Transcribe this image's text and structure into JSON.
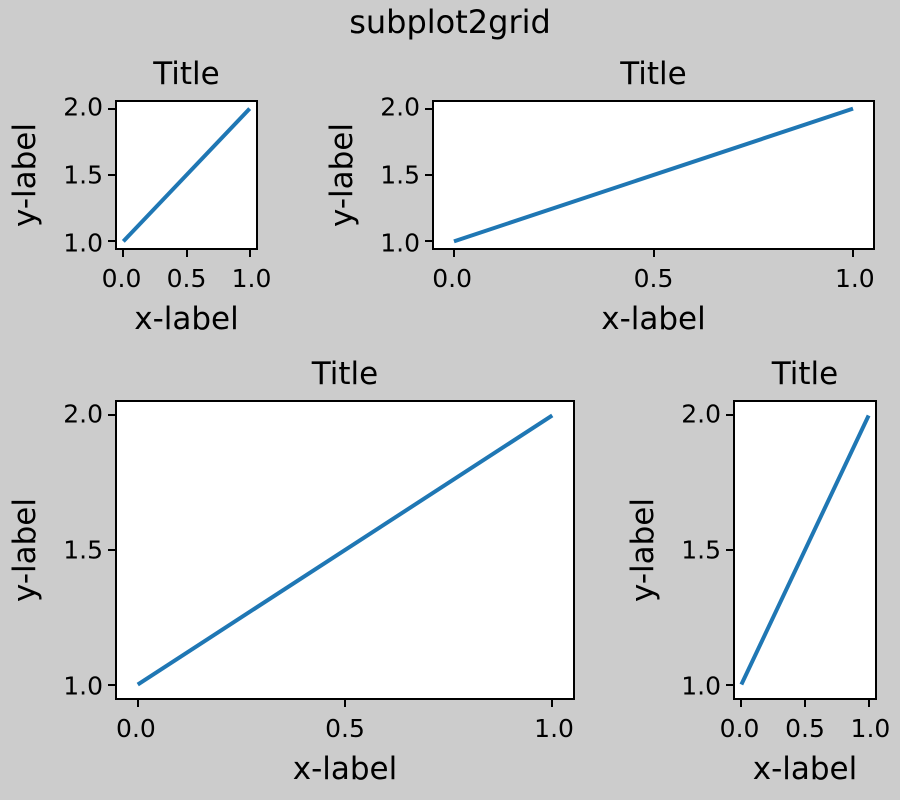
{
  "figure": {
    "suptitle": "subplot2grid",
    "facecolor": "#cccccc",
    "axes_facecolor": "#ffffff",
    "spine_color": "#000000",
    "text_color": "#000000",
    "line_color": "#1f77b4"
  },
  "chart_data": [
    {
      "type": "line",
      "title": "Title",
      "xlabel": "x-label",
      "ylabel": "y-label",
      "x": [
        0,
        1
      ],
      "y": [
        1,
        2
      ],
      "xlim": [
        -0.05,
        1.05
      ],
      "ylim": [
        0.95,
        2.05
      ],
      "xticks": [
        "0.0",
        "0.5",
        "1.0"
      ],
      "yticks": [
        "1.0",
        "1.5",
        "2.0"
      ],
      "grid": false,
      "legend": false,
      "line_color": "#1f77b4",
      "subplot2grid": {
        "shape": [
          3,
          3
        ],
        "loc": [
          0,
          0
        ],
        "rowspan": 1,
        "colspan": 1
      }
    },
    {
      "type": "line",
      "title": "Title",
      "xlabel": "x-label",
      "ylabel": "y-label",
      "x": [
        0,
        1
      ],
      "y": [
        1,
        2
      ],
      "xlim": [
        -0.05,
        1.05
      ],
      "ylim": [
        0.95,
        2.05
      ],
      "xticks": [
        "0.0",
        "0.5",
        "1.0"
      ],
      "yticks": [
        "1.0",
        "1.5",
        "2.0"
      ],
      "grid": false,
      "legend": false,
      "line_color": "#1f77b4",
      "subplot2grid": {
        "shape": [
          3,
          3
        ],
        "loc": [
          0,
          1
        ],
        "rowspan": 1,
        "colspan": 2
      }
    },
    {
      "type": "line",
      "title": "Title",
      "xlabel": "x-label",
      "ylabel": "y-label",
      "x": [
        0,
        1
      ],
      "y": [
        1,
        2
      ],
      "xlim": [
        -0.05,
        1.05
      ],
      "ylim": [
        0.95,
        2.05
      ],
      "xticks": [
        "0.0",
        "0.5",
        "1.0"
      ],
      "yticks": [
        "1.0",
        "1.5",
        "2.0"
      ],
      "grid": false,
      "legend": false,
      "line_color": "#1f77b4",
      "subplot2grid": {
        "shape": [
          3,
          3
        ],
        "loc": [
          1,
          0
        ],
        "rowspan": 2,
        "colspan": 2
      }
    },
    {
      "type": "line",
      "title": "Title",
      "xlabel": "x-label",
      "ylabel": "y-label",
      "x": [
        0,
        1
      ],
      "y": [
        1,
        2
      ],
      "xlim": [
        -0.05,
        1.05
      ],
      "ylim": [
        0.95,
        2.05
      ],
      "xticks": [
        "0.0",
        "0.5",
        "1.0"
      ],
      "yticks": [
        "1.0",
        "1.5",
        "2.0"
      ],
      "grid": false,
      "legend": false,
      "line_color": "#1f77b4",
      "subplot2grid": {
        "shape": [
          3,
          3
        ],
        "loc": [
          1,
          2
        ],
        "rowspan": 2,
        "colspan": 1
      }
    }
  ]
}
